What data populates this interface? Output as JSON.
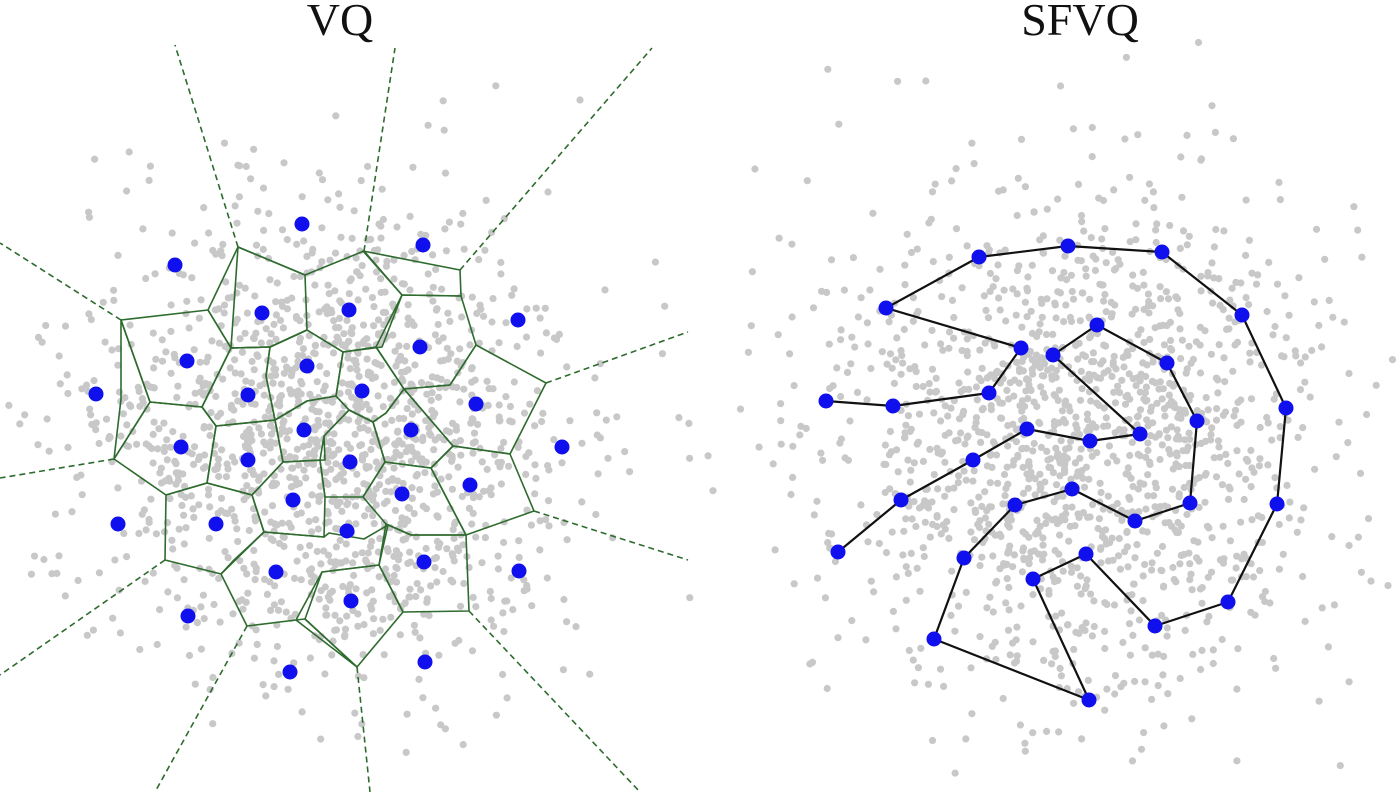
{
  "titles": {
    "left": "VQ",
    "right": "SFVQ"
  },
  "colors": {
    "data_points": "#c8c8c8",
    "codebook_vectors": "#1010ee",
    "voronoi_edges": "#2e6b2e",
    "curve": "#111111",
    "background": "#ffffff"
  },
  "legend": null
}
